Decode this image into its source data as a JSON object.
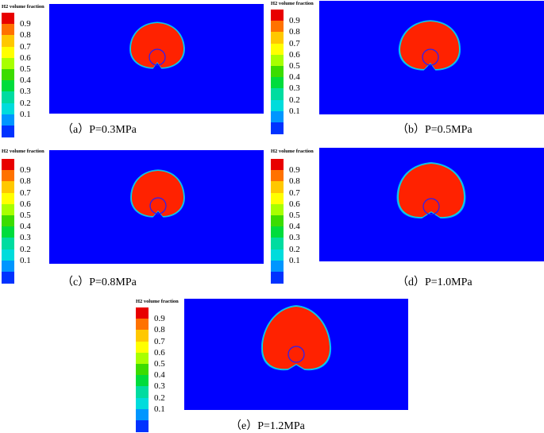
{
  "legend": {
    "title": "H2 volume fraction",
    "ticks": [
      "0.9",
      "0.8",
      "0.7",
      "0.6",
      "0.5",
      "0.4",
      "0.3",
      "0.2",
      "0.1"
    ],
    "colors": [
      "#e80000",
      "#ff7200",
      "#ffc800",
      "#ffff00",
      "#a8ff00",
      "#3cdc00",
      "#00dc3c",
      "#00dca0",
      "#00dcdc",
      "#0096ff",
      "#0032ff"
    ]
  },
  "panels": [
    {
      "caption": "（a）P=0.3MPa"
    },
    {
      "caption": "（b）P=0.5MPa"
    },
    {
      "caption": "（c）P=0.8MPa"
    },
    {
      "caption": "（d）P=1.0MPa"
    },
    {
      "caption": "（e）P=1.2MPa"
    }
  ],
  "colors": {
    "background_field": "#0000ff",
    "bubble": "#ff2200",
    "halo_inner": "#00e0e0",
    "halo_outer": "#00a0ff",
    "tube_outline": "#2020ff"
  }
}
